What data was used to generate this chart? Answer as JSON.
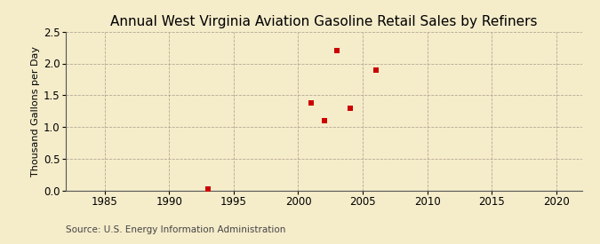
{
  "title": "Annual West Virginia Aviation Gasoline Retail Sales by Refiners",
  "ylabel": "Thousand Gallons per Day",
  "source": "Source: U.S. Energy Information Administration",
  "background_color": "#f5ecca",
  "x_data": [
    1993,
    2001,
    2002,
    2003,
    2004,
    2006
  ],
  "y_data": [
    0.02,
    1.38,
    1.1,
    2.2,
    1.3,
    1.9
  ],
  "marker_color": "#cc0000",
  "marker_size": 16,
  "xlim": [
    1982,
    2022
  ],
  "ylim": [
    0.0,
    2.5
  ],
  "xticks": [
    1985,
    1990,
    1995,
    2000,
    2005,
    2010,
    2015,
    2020
  ],
  "yticks": [
    0.0,
    0.5,
    1.0,
    1.5,
    2.0,
    2.5
  ],
  "title_fontsize": 11,
  "axis_fontsize": 8,
  "tick_fontsize": 8.5,
  "source_fontsize": 7.5
}
